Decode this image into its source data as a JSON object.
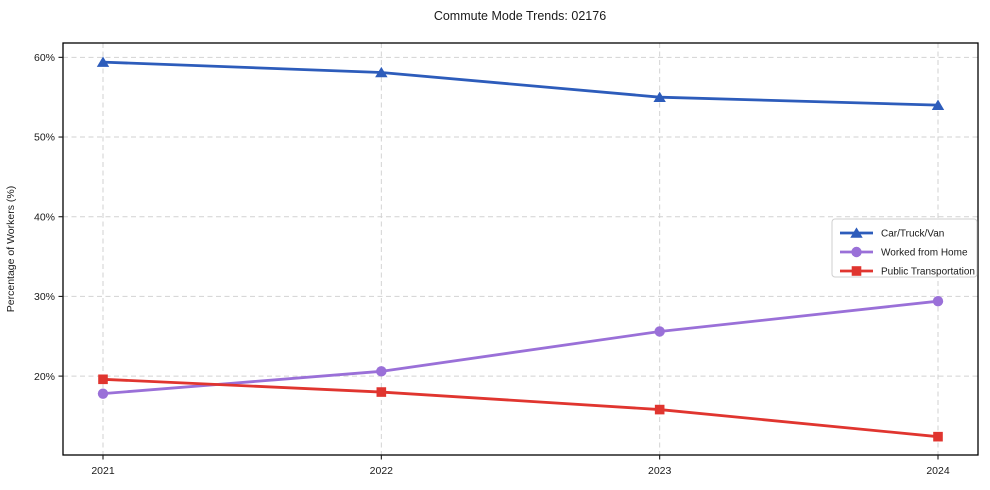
{
  "chart_data": {
    "type": "line",
    "title": "Commute Mode Trends: 02176",
    "ylabel": "Percentage of Workers (%)",
    "xlabel": "",
    "categories": [
      "2021",
      "2022",
      "2023",
      "2024"
    ],
    "series": [
      {
        "name": "Car/Truck/Van",
        "marker": "triangle",
        "color": "#2d5cbb",
        "values": [
          59.4,
          58.1,
          55.0,
          54.0
        ]
      },
      {
        "name": "Worked from Home",
        "marker": "circle",
        "color": "#9a70d8",
        "values": [
          17.8,
          20.6,
          25.6,
          29.4
        ]
      },
      {
        "name": "Public Transportation",
        "marker": "square",
        "color": "#e0352f",
        "values": [
          19.6,
          18.0,
          15.8,
          12.4
        ]
      }
    ],
    "yticks": [
      20,
      30,
      40,
      50,
      60
    ],
    "ytick_suffix": "%",
    "ylim": [
      10.1,
      61.8
    ],
    "grid": true,
    "grid_style": "dashed",
    "grid_color": "#d2d2d2",
    "frame_color": "#000000",
    "background_color": "#ffffff",
    "legend": {
      "position": "right-middle",
      "labels": [
        "Car/Truck/Van",
        "Worked from Home",
        "Public Transportation"
      ]
    }
  }
}
